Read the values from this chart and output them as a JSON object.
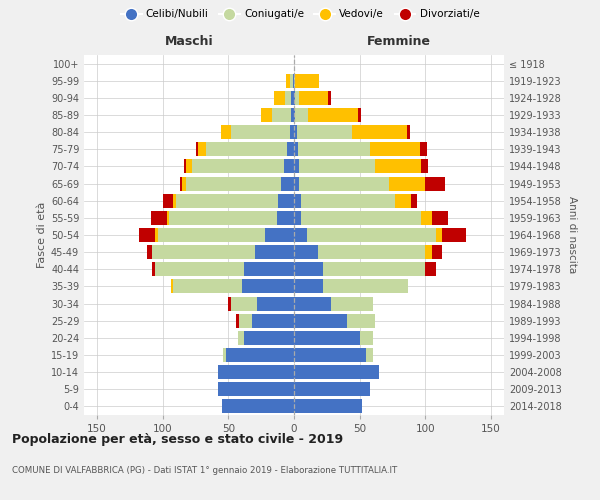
{
  "age_groups": [
    "0-4",
    "5-9",
    "10-14",
    "15-19",
    "20-24",
    "25-29",
    "30-34",
    "35-39",
    "40-44",
    "45-49",
    "50-54",
    "55-59",
    "60-64",
    "65-69",
    "70-74",
    "75-79",
    "80-84",
    "85-89",
    "90-94",
    "95-99",
    "100+"
  ],
  "birth_years": [
    "2014-2018",
    "2009-2013",
    "2004-2008",
    "1999-2003",
    "1994-1998",
    "1989-1993",
    "1984-1988",
    "1979-1983",
    "1974-1978",
    "1969-1973",
    "1964-1968",
    "1959-1963",
    "1954-1958",
    "1949-1953",
    "1944-1948",
    "1939-1943",
    "1934-1938",
    "1929-1933",
    "1924-1928",
    "1919-1923",
    "≤ 1918"
  ],
  "colors": {
    "celibi": "#4472c4",
    "coniugati": "#c5d9a0",
    "vedovi": "#ffc000",
    "divorziati": "#c00000"
  },
  "maschi": {
    "celibi": [
      55,
      58,
      58,
      52,
      38,
      32,
      28,
      40,
      38,
      30,
      22,
      13,
      12,
      10,
      8,
      5,
      3,
      2,
      2,
      1,
      0
    ],
    "coniugati": [
      0,
      0,
      0,
      2,
      5,
      10,
      20,
      52,
      68,
      78,
      82,
      82,
      78,
      72,
      70,
      62,
      45,
      15,
      5,
      2,
      0
    ],
    "vedovi": [
      0,
      0,
      0,
      0,
      0,
      0,
      0,
      2,
      0,
      0,
      2,
      2,
      2,
      3,
      4,
      6,
      8,
      8,
      8,
      3,
      0
    ],
    "divorziati": [
      0,
      0,
      0,
      0,
      0,
      2,
      2,
      0,
      2,
      4,
      12,
      12,
      8,
      2,
      2,
      2,
      0,
      0,
      0,
      0,
      0
    ]
  },
  "femmine": {
    "celibi": [
      52,
      58,
      65,
      55,
      50,
      40,
      28,
      22,
      22,
      18,
      10,
      5,
      5,
      4,
      4,
      3,
      2,
      1,
      1,
      0,
      0
    ],
    "coniugati": [
      0,
      0,
      0,
      5,
      10,
      22,
      32,
      65,
      78,
      82,
      98,
      92,
      72,
      68,
      58,
      55,
      42,
      10,
      3,
      1,
      0
    ],
    "vedovi": [
      0,
      0,
      0,
      0,
      0,
      0,
      0,
      0,
      0,
      5,
      5,
      8,
      12,
      28,
      35,
      38,
      42,
      38,
      22,
      18,
      0
    ],
    "divorziati": [
      0,
      0,
      0,
      0,
      0,
      0,
      0,
      0,
      8,
      8,
      18,
      12,
      5,
      15,
      5,
      5,
      2,
      2,
      2,
      0,
      0
    ]
  },
  "xlim": 160,
  "xticks": [
    150,
    100,
    50,
    0,
    50,
    100,
    150
  ],
  "title": "Popolazione per età, sesso e stato civile - 2019",
  "subtitle": "COMUNE DI VALFABBRICA (PG) - Dati ISTAT 1° gennaio 2019 - Elaborazione TUTTITALIA.IT",
  "ylabel_left": "Fasce di età",
  "ylabel_right": "Anni di nascita",
  "header_left": "Maschi",
  "header_right": "Femmine",
  "legend_labels": [
    "Celibi/Nubili",
    "Coniugati/e",
    "Vedovi/e",
    "Divorziati/e"
  ],
  "bg_color": "#f0f0f0",
  "plot_bg": "#ffffff",
  "header_color_left": "#333333",
  "header_color_right": "#333333"
}
